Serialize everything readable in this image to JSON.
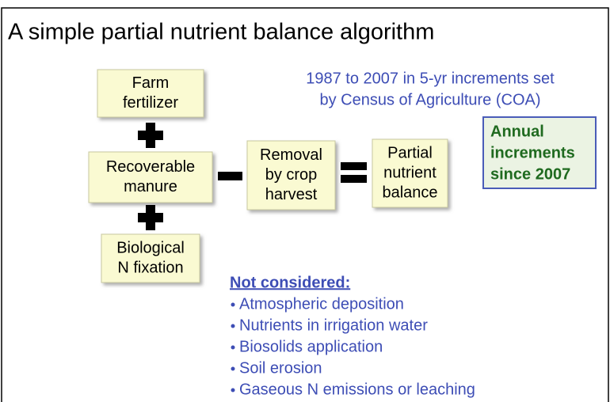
{
  "header": {
    "title": "A simple partial nutrient balance algorithm"
  },
  "nodes": [
    {
      "lines": [
        "Farm",
        "fertilizer"
      ]
    },
    {
      "lines": [
        "Recoverable",
        "manure"
      ]
    },
    {
      "lines": [
        "Biological",
        "N fixation"
      ]
    },
    {
      "lines": [
        "Removal",
        "by crop",
        "harvest"
      ]
    },
    {
      "lines": [
        "Partial",
        "nutrient",
        "balance"
      ]
    }
  ],
  "note": {
    "lines": [
      "1987 to 2007 in 5-yr increments set",
      "by Census of Agriculture (COA)"
    ]
  },
  "callout": {
    "lines": [
      "Annual",
      "increments",
      "since 2007"
    ]
  },
  "not_considered": {
    "heading": "Not considered:",
    "items": [
      "Atmospheric deposition",
      "Nutrients in irrigation water",
      "Biosolids application",
      "Soil erosion",
      "Gaseous N emissions or leaching"
    ]
  }
}
